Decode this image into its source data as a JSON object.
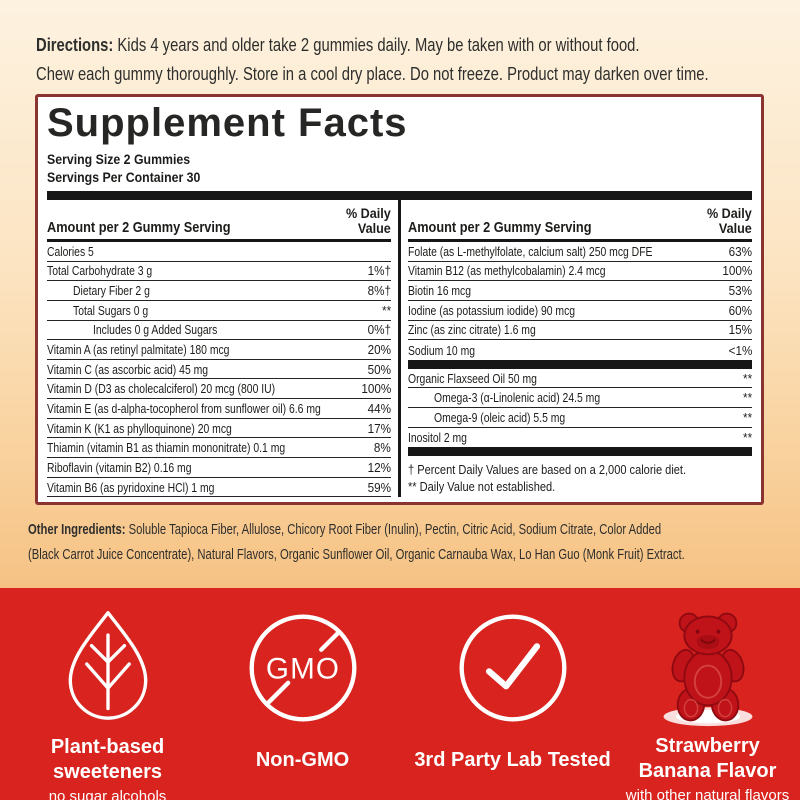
{
  "directions": {
    "label": "Directions:",
    "line1": "Kids 4 years and older take 2 gummies daily. May be taken with or without food.",
    "line2": "Chew each gummy thoroughly. Store in a cool dry place. Do not freeze. Product may darken over time."
  },
  "panel": {
    "title": "Supplement Facts",
    "serving_size": "Serving Size 2 Gummies",
    "servings_per_container": "Servings Per Container 30",
    "col_header_amount": "Amount per 2 Gummy Serving",
    "col_header_dv": "% Daily\nValue",
    "left_rows": [
      {
        "name": "Calories 5",
        "dv": "",
        "indent": 0
      },
      {
        "name": "Total Carbohydrate 3 g",
        "dv": "1%†",
        "indent": 0
      },
      {
        "name": "Dietary Fiber 2 g",
        "dv": "8%†",
        "indent": 1
      },
      {
        "name": "Total Sugars 0 g",
        "dv": "**",
        "indent": 1
      },
      {
        "name": "Includes 0 g Added Sugars",
        "dv": "0%†",
        "indent": 2
      },
      {
        "name": "Vitamin A (as retinyl palmitate) 180 mcg",
        "dv": "20%",
        "indent": 0
      },
      {
        "name": "Vitamin C (as ascorbic acid) 45 mg",
        "dv": "50%",
        "indent": 0
      },
      {
        "name": "Vitamin D (D3 as cholecalciferol) 20 mcg (800 IU)",
        "dv": "100%",
        "indent": 0
      },
      {
        "name": "Vitamin E (as d-alpha-tocopherol from sunflower oil) 6.6 mg",
        "dv": "44%",
        "indent": 0
      },
      {
        "name": "Vitamin K (K1 as phylloquinone) 20 mcg",
        "dv": "17%",
        "indent": 0
      },
      {
        "name": "Thiamin (vitamin B1 as thiamin mononitrate) 0.1 mg",
        "dv": "8%",
        "indent": 0
      },
      {
        "name": "Riboflavin (vitamin B2) 0.16 mg",
        "dv": "12%",
        "indent": 0
      },
      {
        "name": "Vitamin B6 (as pyridoxine HCl) 1 mg",
        "dv": "59%",
        "indent": 0
      }
    ],
    "right_rows": [
      {
        "name": "Folate (as L-methylfolate, calcium salt) 250 mcg DFE",
        "dv": "63%",
        "indent": 0
      },
      {
        "name": "Vitamin B12 (as methylcobalamin) 2.4 mcg",
        "dv": "100%",
        "indent": 0
      },
      {
        "name": "Biotin 16 mcg",
        "dv": "53%",
        "indent": 0
      },
      {
        "name": "Iodine (as potassium iodide) 90 mcg",
        "dv": "60%",
        "indent": 0
      },
      {
        "name": "Zinc (as zinc citrate) 1.6 mg",
        "dv": "15%",
        "indent": 0
      },
      {
        "name": "Sodium 10 mg",
        "dv": "<1%",
        "indent": 0
      },
      {
        "bar": true
      },
      {
        "name": "Organic Flaxseed Oil 50 mg",
        "dv": "**",
        "indent": 0
      },
      {
        "name": "Omega-3 (α-Linolenic acid) 24.5 mg",
        "dv": "**",
        "indent": 1
      },
      {
        "name": "Omega-9 (oleic acid) 5.5 mg",
        "dv": "**",
        "indent": 1
      },
      {
        "name": "Inositol 2 mg",
        "dv": "**",
        "indent": 0
      },
      {
        "bar": true
      }
    ],
    "footnote1": "† Percent Daily Values are based on a 2,000 calorie diet.",
    "footnote2": "** Daily Value not established."
  },
  "other_ingredients": {
    "label": "Other Ingredients:",
    "line1": "Soluble Tapioca Fiber, Allulose, Chicory Root Fiber (Inulin), Pectin, Citric Acid, Sodium Citrate, Color Added",
    "line2": "(Black Carrot Juice Concentrate), Natural Flavors, Organic Sunflower Oil, Organic Carnauba Wax, Lo Han Guo (Monk Fruit) Extract."
  },
  "badges": [
    {
      "title": "Plant-based sweeteners",
      "subtitle": "no sugar alcohols",
      "icon": "leaf-icon"
    },
    {
      "title": "Non-GMO",
      "subtitle": "",
      "icon": "non-gmo-icon",
      "icon_text": "GMO"
    },
    {
      "title": "3rd Party Lab Tested",
      "subtitle": "",
      "icon": "checkmark-circle-icon"
    },
    {
      "title": "Strawberry Banana Flavor",
      "subtitle": "with other natural flavors",
      "icon": "gummy-bear-icon"
    }
  ],
  "colors": {
    "band_red": "#d8231e",
    "panel_border": "#8a3431",
    "bar_black": "#161616",
    "background_top": "#fdf2e0",
    "background_bottom": "#f6c284",
    "bear_red": "#c01219",
    "text": "#1c1c1a",
    "white": "#ffffff"
  }
}
